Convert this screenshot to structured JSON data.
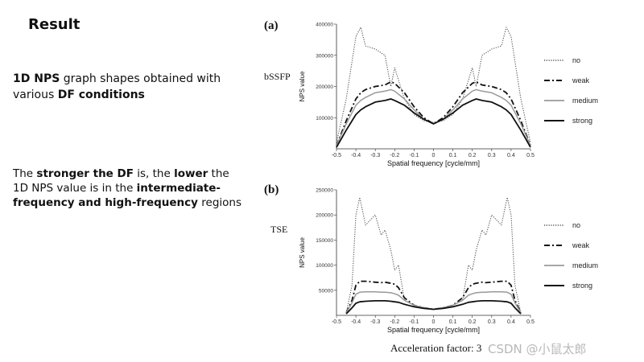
{
  "slide": {
    "title": "Result",
    "para1": {
      "b1": "1D NPS",
      "t1": " graph shapes obtained with various ",
      "b2": "DF conditions"
    },
    "para2": {
      "t1": "The ",
      "b1": "stronger the DF",
      "t2": " is, the ",
      "b2": "lower",
      "t3": " the 1D NPS value is in the ",
      "b3": "intermediate-frequency and high-frequency",
      "t4": " regions"
    },
    "acceleration_note": "Acceleration factor: 3",
    "watermark": "CSDN @小鼠太郎"
  },
  "colors": {
    "no": "#555555",
    "weak": "#111111",
    "medium": "#9a9a9a",
    "strong": "#111111",
    "axis": "#333333"
  },
  "chart_data": [
    {
      "type": "line",
      "panel_label": "(a)",
      "sequence_label": "bSSFP",
      "xlabel": "Spatial frequency [cycle/mm]",
      "ylabel": "NPS value",
      "xlim": [
        -0.5,
        0.5
      ],
      "ylim": [
        0,
        400000
      ],
      "xticks": [
        "-0.5",
        "-0.4",
        "-0.3",
        "-0.2",
        "-0.1",
        "0",
        "0.1",
        "0.2",
        "0.3",
        "0.4",
        "0.5"
      ],
      "yticks": [
        {
          "value": 100000,
          "label": "100000"
        },
        {
          "value": 200000,
          "label": "200000"
        },
        {
          "value": 300000,
          "label": "300000"
        },
        {
          "value": 400000,
          "label": "400000"
        }
      ],
      "legend_position": "right",
      "x": [
        -0.5,
        -0.45,
        -0.4,
        -0.375,
        -0.35,
        -0.3,
        -0.25,
        -0.22,
        -0.2,
        -0.15,
        -0.1,
        -0.05,
        0,
        0.05,
        0.1,
        0.15,
        0.2,
        0.22,
        0.25,
        0.3,
        0.35,
        0.375,
        0.4,
        0.45,
        0.5
      ],
      "series": [
        {
          "name": "no",
          "style": "dotted",
          "values": [
            20000,
            160000,
            360000,
            390000,
            330000,
            320000,
            300000,
            200000,
            260000,
            160000,
            110000,
            90000,
            85000,
            90000,
            110000,
            160000,
            260000,
            200000,
            300000,
            320000,
            330000,
            390000,
            360000,
            160000,
            20000
          ]
        },
        {
          "name": "weak",
          "style": "dashdot",
          "values": [
            10000,
            90000,
            160000,
            180000,
            190000,
            200000,
            205000,
            215000,
            210000,
            180000,
            135000,
            100000,
            80000,
            100000,
            135000,
            180000,
            210000,
            215000,
            205000,
            200000,
            190000,
            180000,
            160000,
            90000,
            10000
          ]
        },
        {
          "name": "medium",
          "style": "solid",
          "values": [
            10000,
            80000,
            140000,
            155000,
            165000,
            180000,
            185000,
            190000,
            185000,
            160000,
            125000,
            95000,
            80000,
            95000,
            125000,
            160000,
            185000,
            190000,
            185000,
            180000,
            165000,
            155000,
            140000,
            80000,
            10000
          ]
        },
        {
          "name": "strong",
          "style": "solid",
          "values": [
            5000,
            60000,
            110000,
            125000,
            135000,
            150000,
            155000,
            160000,
            155000,
            140000,
            115000,
            95000,
            80000,
            95000,
            115000,
            140000,
            155000,
            160000,
            155000,
            150000,
            135000,
            125000,
            110000,
            60000,
            5000
          ]
        }
      ]
    },
    {
      "type": "line",
      "panel_label": "(b)",
      "sequence_label": "TSE",
      "xlabel": "Spatial frequency [cycle/mm]",
      "ylabel": "NPS value",
      "xlim": [
        -0.5,
        0.5
      ],
      "ylim": [
        0,
        250000
      ],
      "xticks": [
        "-0.5",
        "-0.4",
        "-0.3",
        "-0.2",
        "-0.1",
        "0",
        "0.1",
        "0.2",
        "0.3",
        "0.4",
        "0.5"
      ],
      "yticks": [
        {
          "value": 50000,
          "label": "50000"
        },
        {
          "value": 100000,
          "label": "100000"
        },
        {
          "value": 150000,
          "label": "150000"
        },
        {
          "value": 200000,
          "label": "200000"
        },
        {
          "value": 250000,
          "label": "250000"
        }
      ],
      "legend_position": "right",
      "x": [
        -0.45,
        -0.42,
        -0.4,
        -0.38,
        -0.35,
        -0.3,
        -0.27,
        -0.25,
        -0.22,
        -0.2,
        -0.18,
        -0.15,
        -0.1,
        -0.05,
        0,
        0.05,
        0.1,
        0.15,
        0.18,
        0.2,
        0.22,
        0.25,
        0.27,
        0.3,
        0.35,
        0.38,
        0.4,
        0.42,
        0.45
      ],
      "series": [
        {
          "name": "no",
          "style": "dotted",
          "values": [
            5000,
            60000,
            200000,
            235000,
            180000,
            200000,
            160000,
            170000,
            130000,
            90000,
            100000,
            30000,
            20000,
            15000,
            12000,
            15000,
            20000,
            30000,
            100000,
            90000,
            130000,
            170000,
            160000,
            200000,
            180000,
            235000,
            200000,
            60000,
            5000
          ]
        },
        {
          "name": "weak",
          "style": "dashdot",
          "values": [
            5000,
            30000,
            60000,
            68000,
            68000,
            66000,
            65000,
            66000,
            64000,
            62000,
            55000,
            35000,
            20000,
            15000,
            12000,
            15000,
            20000,
            35000,
            55000,
            62000,
            64000,
            66000,
            65000,
            66000,
            68000,
            68000,
            60000,
            30000,
            5000
          ]
        },
        {
          "name": "medium",
          "style": "solid",
          "values": [
            5000,
            25000,
            42000,
            46000,
            47000,
            47000,
            46000,
            46000,
            45000,
            43000,
            40000,
            30000,
            20000,
            15000,
            12000,
            15000,
            20000,
            30000,
            40000,
            43000,
            45000,
            46000,
            46000,
            47000,
            47000,
            46000,
            42000,
            25000,
            5000
          ]
        },
        {
          "name": "strong",
          "style": "solid",
          "values": [
            3000,
            15000,
            24000,
            27000,
            28000,
            29000,
            29000,
            29000,
            28000,
            27000,
            26000,
            22000,
            17000,
            14000,
            12000,
            14000,
            17000,
            22000,
            26000,
            27000,
            28000,
            29000,
            29000,
            29000,
            28000,
            27000,
            24000,
            15000,
            3000
          ]
        }
      ]
    }
  ]
}
